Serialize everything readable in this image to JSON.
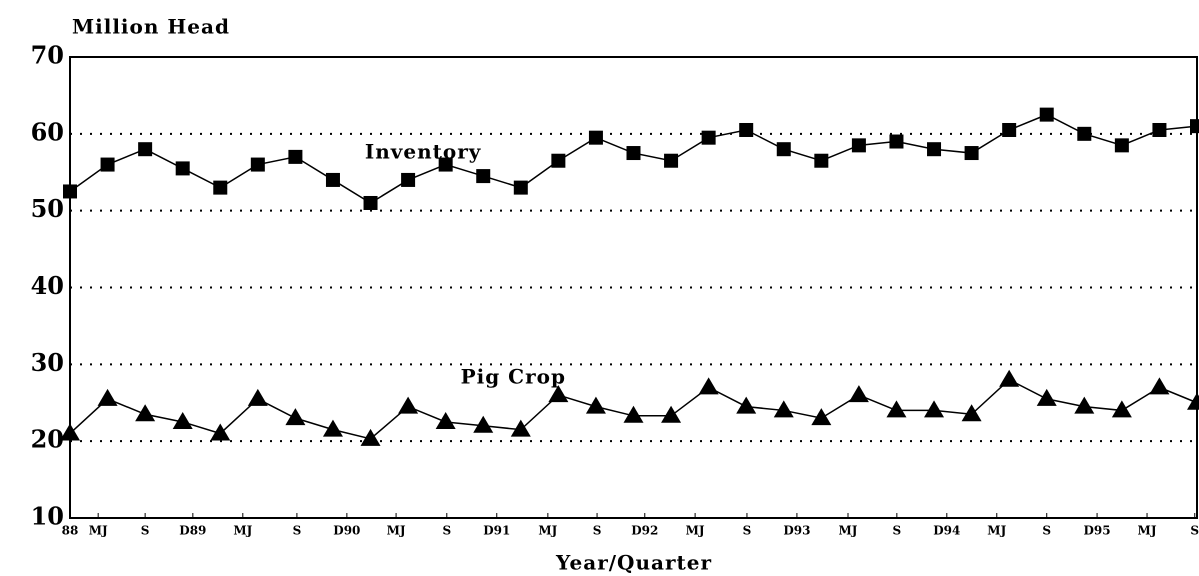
{
  "chart_data": {
    "type": "line",
    "y_label": "Million Head",
    "x_label": "Year/Quarter",
    "annotations": [
      {
        "text": "Inventory",
        "x": 9.4,
        "y": 57.5
      },
      {
        "text": "Pig Crop",
        "x": 11.8,
        "y": 28.2
      }
    ],
    "x": [
      0,
      1,
      2,
      3,
      4,
      5,
      6,
      7,
      8,
      9,
      10,
      11,
      12,
      13,
      14,
      15,
      16,
      17,
      18,
      19,
      20,
      21,
      22,
      23,
      24,
      25,
      26,
      27,
      28,
      29,
      30
    ],
    "series": [
      {
        "name": "Inventory",
        "color": "#000000",
        "marker": "square",
        "values": [
          52.5,
          56,
          58,
          55.5,
          53,
          56,
          57,
          54,
          51,
          54,
          56,
          54.5,
          53,
          56.5,
          59.5,
          57.5,
          56.5,
          59.5,
          60.5,
          58,
          56.5,
          58.5,
          59,
          58,
          57.5,
          60.5,
          62.5,
          60,
          58.5,
          60.5,
          61
        ]
      },
      {
        "name": "Pig Crop",
        "color": "#000000",
        "marker": "triangle",
        "values": [
          21,
          25.5,
          23.5,
          22.5,
          21,
          25.5,
          23,
          21.5,
          20.3,
          24.5,
          22.5,
          22,
          21.5,
          26,
          24.5,
          23.3,
          23.3,
          27,
          24.5,
          24,
          23,
          26,
          24,
          24,
          23.5,
          28,
          25.5,
          24.5,
          24,
          27,
          25
        ]
      }
    ],
    "xlim": [
      0,
      30
    ],
    "xticks": [
      {
        "value": 0,
        "label": "88"
      },
      {
        "value": 0.75,
        "label": "MJ"
      },
      {
        "value": 2,
        "label": "S"
      },
      {
        "value": 3.27,
        "label": "D89"
      },
      {
        "value": 4.6,
        "label": "MJ"
      },
      {
        "value": 6.04,
        "label": "S"
      },
      {
        "value": 7.37,
        "label": "D90"
      },
      {
        "value": 8.68,
        "label": "MJ"
      },
      {
        "value": 10.03,
        "label": "S"
      },
      {
        "value": 11.36,
        "label": "D91"
      },
      {
        "value": 12.72,
        "label": "MJ"
      },
      {
        "value": 14.03,
        "label": "S"
      },
      {
        "value": 15.3,
        "label": "D92"
      },
      {
        "value": 16.64,
        "label": "MJ"
      },
      {
        "value": 18.02,
        "label": "S"
      },
      {
        "value": 19.35,
        "label": "D93"
      },
      {
        "value": 20.71,
        "label": "MJ"
      },
      {
        "value": 22.01,
        "label": "S"
      },
      {
        "value": 23.34,
        "label": "D94"
      },
      {
        "value": 24.67,
        "label": "MJ"
      },
      {
        "value": 26,
        "label": "S"
      },
      {
        "value": 27.34,
        "label": "D95"
      },
      {
        "value": 28.67,
        "label": "MJ"
      },
      {
        "value": 29.94,
        "label": "S"
      }
    ],
    "ylim": [
      10,
      70
    ],
    "yticks": [
      10,
      20,
      30,
      40,
      50,
      60,
      70
    ],
    "grid": true
  }
}
